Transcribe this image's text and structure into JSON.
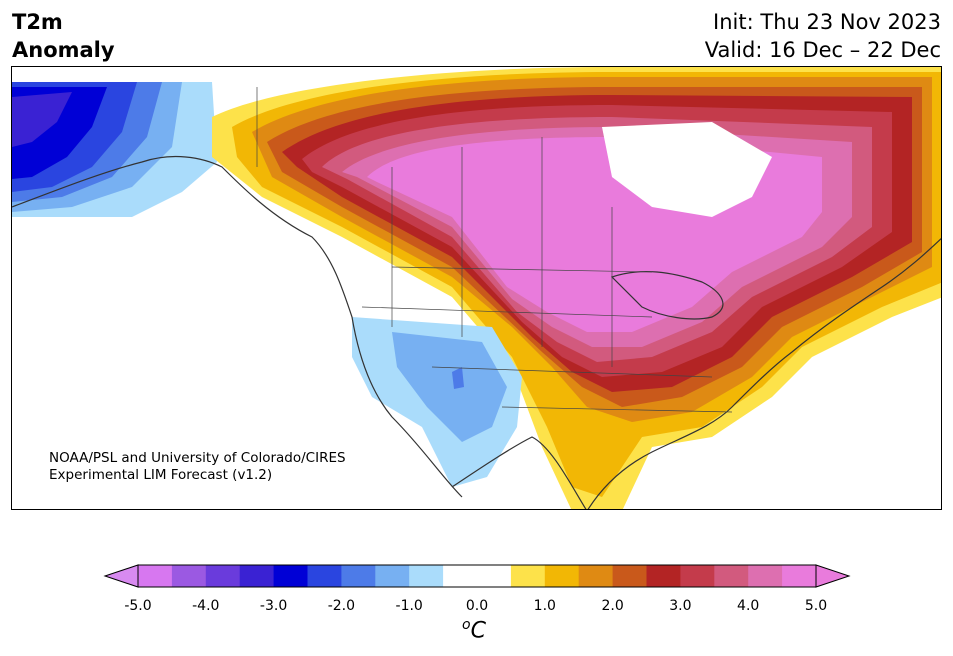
{
  "header": {
    "variable": "T2m",
    "field": "Anomaly",
    "init": "Init: Thu 23 Nov 2023",
    "valid": "Valid: 16 Dec – 22 Dec"
  },
  "credit": {
    "line1": "NOAA/PSL and University of Colorado/CIRES",
    "line2": "Experimental LIM Forecast (v1.2)"
  },
  "colorbar": {
    "unit_base": "C",
    "unit_sup": "o",
    "ticks": [
      "-5.0",
      "-4.0",
      "-3.0",
      "-2.0",
      "-1.0",
      "0.0",
      "1.0",
      "2.0",
      "3.0",
      "4.0",
      "5.0"
    ],
    "under_color": "#d88af0",
    "over_color": "#e97bdc",
    "colors": [
      "#d777f0",
      "#9b59e2",
      "#6a3bdc",
      "#3a22d3",
      "#0000d6",
      "#2a45e0",
      "#4d7be8",
      "#77b0f2",
      "#aadcfb",
      "#ffffff",
      "#ffffff",
      "#fde24a",
      "#f2b705",
      "#df8a13",
      "#c9591b",
      "#b32424",
      "#c43b4b",
      "#d25a7e",
      "#dd6fb0",
      "#e97bdc"
    ]
  },
  "legend_meaning": {
    "positive_anomaly_colors": [
      "#fde24a",
      "#f2b705",
      "#df8a13",
      "#c9591b",
      "#b32424",
      "#c43b4b",
      "#d25a7e",
      "#dd6fb0",
      "#e97bdc"
    ],
    "negative_anomaly_colors": [
      "#aadcfb",
      "#77b0f2",
      "#4d7be8",
      "#2a45e0",
      "#0000d6",
      "#3a22d3"
    ]
  }
}
